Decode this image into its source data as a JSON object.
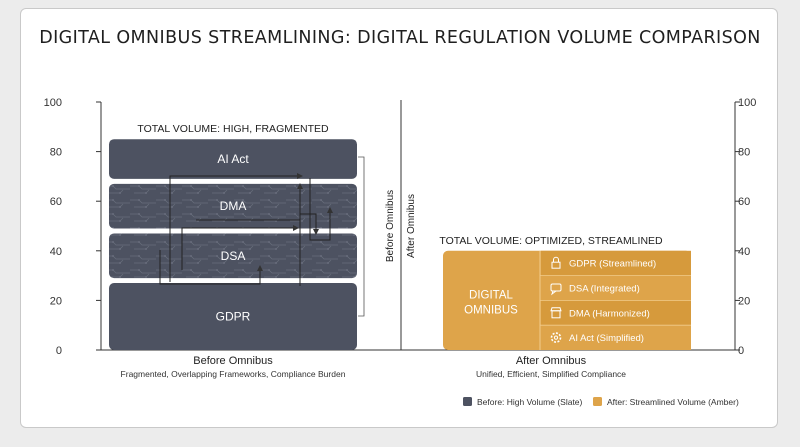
{
  "chart_data": {
    "type": "bar",
    "title": "DIGITAL OMNIBUS STREAMLINING: DIGITAL REGULATION VOLUME COMPARISON",
    "categories": [
      "Before Omnibus",
      "After Omnibus"
    ],
    "category_subtitles": [
      "Fragmented, Overlapping Frameworks, Compliance Burden",
      "Unified, Efficient, Simplified Compliance"
    ],
    "ylim": [
      0,
      100
    ],
    "yticks": [
      0,
      20,
      40,
      60,
      80,
      100
    ],
    "grid": false,
    "before": {
      "caption": "TOTAL VOLUME: HIGH, FRAGMENTED",
      "color": "#4d5261",
      "segments": [
        {
          "name": "GDPR",
          "low": 0,
          "high": 27
        },
        {
          "name": "DSA",
          "low": 29,
          "high": 47
        },
        {
          "name": "DMA",
          "low": 49,
          "high": 67
        },
        {
          "name": "AI Act",
          "low": 69,
          "high": 85
        }
      ]
    },
    "after": {
      "caption": "TOTAL VOLUME: OPTIMIZED, STREAMLINED",
      "color": "#dea44a",
      "total": 40,
      "main_label_lines": [
        "DIGITAL",
        "OMNIBUS"
      ],
      "segments": [
        {
          "name": "GDPR (Streamlined)",
          "icon": "lock-icon"
        },
        {
          "name": "DSA (Integrated)",
          "icon": "chat-icon"
        },
        {
          "name": "DMA (Harmonized)",
          "icon": "storefront-icon"
        },
        {
          "name": "AI Act (Simplified)",
          "icon": "gear-icon"
        }
      ]
    },
    "divider_labels": [
      "Before Omnibus",
      "After Omnibus"
    ],
    "legend": {
      "placement": "bottom-right",
      "items": [
        {
          "label": "Before: High Volume (Slate)",
          "color": "#4d5261"
        },
        {
          "label": "After: Streamlined Volume (Amber)",
          "color": "#dea44a"
        }
      ]
    }
  }
}
